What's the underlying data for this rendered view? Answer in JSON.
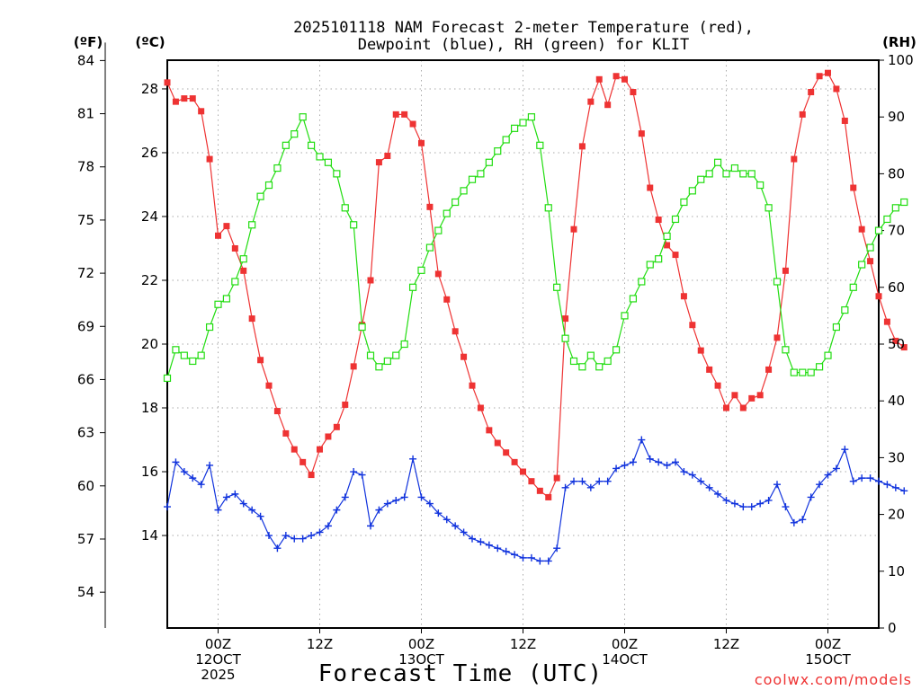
{
  "chart_data": {
    "type": "line",
    "title": [
      "2025101118 NAM Forecast 2-meter Temperature (red),",
      "Dewpoint (blue), RH (green) for KLIT"
    ],
    "xlabel": "Forecast Time (UTC)",
    "credit": "coolwx.com/models",
    "units": {
      "fahrenheit": "(ºF)",
      "celsius": "(ºC)",
      "rh": "(RH)"
    },
    "x_range_hours": [
      0,
      84
    ],
    "x_ticks": [
      {
        "hour": 6,
        "lines": [
          "00Z",
          "12OCT",
          "2025"
        ]
      },
      {
        "hour": 18,
        "lines": [
          "12Z"
        ]
      },
      {
        "hour": 30,
        "lines": [
          "00Z",
          "13OCT"
        ]
      },
      {
        "hour": 42,
        "lines": [
          "12Z"
        ]
      },
      {
        "hour": 54,
        "lines": [
          "00Z",
          "14OCT"
        ]
      },
      {
        "hour": 66,
        "lines": [
          "12Z"
        ]
      },
      {
        "hour": 78,
        "lines": [
          "00Z",
          "15OCT"
        ]
      }
    ],
    "celsius_range": [
      11.1,
      28.9
    ],
    "celsius_ticks": [
      "14",
      "16",
      "18",
      "20",
      "22",
      "24",
      "26",
      "28"
    ],
    "fahrenheit_ticks": [
      "54",
      "57",
      "60",
      "63",
      "66",
      "69",
      "72",
      "75",
      "78",
      "81",
      "84"
    ],
    "rh_range": [
      0,
      100
    ],
    "rh_ticks": [
      "0",
      "10",
      "20",
      "30",
      "40",
      "50",
      "60",
      "70",
      "80",
      "90",
      "100"
    ],
    "grid": true,
    "series": [
      {
        "name": "Temperature",
        "unit": "C",
        "color": "#ee3333",
        "marker": "filled-square",
        "values": [
          28.2,
          27.6,
          27.7,
          27.7,
          27.3,
          25.8,
          23.4,
          23.7,
          23.0,
          22.3,
          20.8,
          19.5,
          18.7,
          17.9,
          17.2,
          16.7,
          16.3,
          15.9,
          16.7,
          17.1,
          17.4,
          18.1,
          19.3,
          20.6,
          22.0,
          25.7,
          25.9,
          27.2,
          27.2,
          26.9,
          26.3,
          24.3,
          22.2,
          21.4,
          20.4,
          19.6,
          18.7,
          18.0,
          17.3,
          16.9,
          16.6,
          16.3,
          16.0,
          15.7,
          15.4,
          15.2,
          15.8,
          20.8,
          23.6,
          26.2,
          27.6,
          28.3,
          27.5,
          28.4,
          28.3,
          27.9,
          26.6,
          24.9,
          23.9,
          23.1,
          22.8,
          21.5,
          20.6,
          19.8,
          19.2,
          18.7,
          18.0,
          18.4,
          18.0,
          18.3,
          18.4,
          19.2,
          20.2,
          22.3,
          25.8,
          27.2,
          27.9,
          28.4,
          28.5,
          28.0,
          27.0,
          24.9,
          23.6,
          22.6,
          21.5,
          20.7,
          20.1,
          19.9
        ]
      },
      {
        "name": "Dewpoint",
        "unit": "C",
        "color": "#1133dd",
        "marker": "plus",
        "values": [
          14.9,
          16.3,
          16.0,
          15.8,
          15.6,
          16.2,
          14.8,
          15.2,
          15.3,
          15.0,
          14.8,
          14.6,
          14.0,
          13.6,
          14.0,
          13.9,
          13.9,
          14.0,
          14.1,
          14.3,
          14.8,
          15.2,
          16.0,
          15.9,
          14.3,
          14.8,
          15.0,
          15.1,
          15.2,
          16.4,
          15.2,
          15.0,
          14.7,
          14.5,
          14.3,
          14.1,
          13.9,
          13.8,
          13.7,
          13.6,
          13.5,
          13.4,
          13.3,
          13.3,
          13.2,
          13.2,
          13.6,
          15.5,
          15.7,
          15.7,
          15.5,
          15.7,
          15.7,
          16.1,
          16.2,
          16.3,
          17.0,
          16.4,
          16.3,
          16.2,
          16.3,
          16.0,
          15.9,
          15.7,
          15.5,
          15.3,
          15.1,
          15.0,
          14.9,
          14.9,
          15.0,
          15.1,
          15.6,
          14.9,
          14.4,
          14.5,
          15.2,
          15.6,
          15.9,
          16.1,
          16.7,
          15.7,
          15.8,
          15.8,
          15.7,
          15.6,
          15.5,
          15.4
        ]
      },
      {
        "name": "RH",
        "unit": "%",
        "color": "#22dd11",
        "marker": "open-square",
        "values": [
          44,
          49,
          48,
          47,
          48,
          53,
          57,
          58,
          61,
          65,
          71,
          76,
          78,
          81,
          85,
          87,
          90,
          85,
          83,
          82,
          80,
          74,
          71,
          53,
          48,
          46,
          47,
          48,
          50,
          60,
          63,
          67,
          70,
          73,
          75,
          77,
          79,
          80,
          82,
          84,
          86,
          88,
          89,
          90,
          85,
          74,
          60,
          51,
          47,
          46,
          48,
          46,
          47,
          49,
          55,
          58,
          61,
          64,
          65,
          69,
          72,
          75,
          77,
          79,
          80,
          82,
          80,
          81,
          80,
          80,
          78,
          74,
          61,
          49,
          45,
          45,
          45,
          46,
          48,
          53,
          56,
          60,
          64,
          67,
          70,
          72,
          74,
          75
        ]
      }
    ]
  }
}
